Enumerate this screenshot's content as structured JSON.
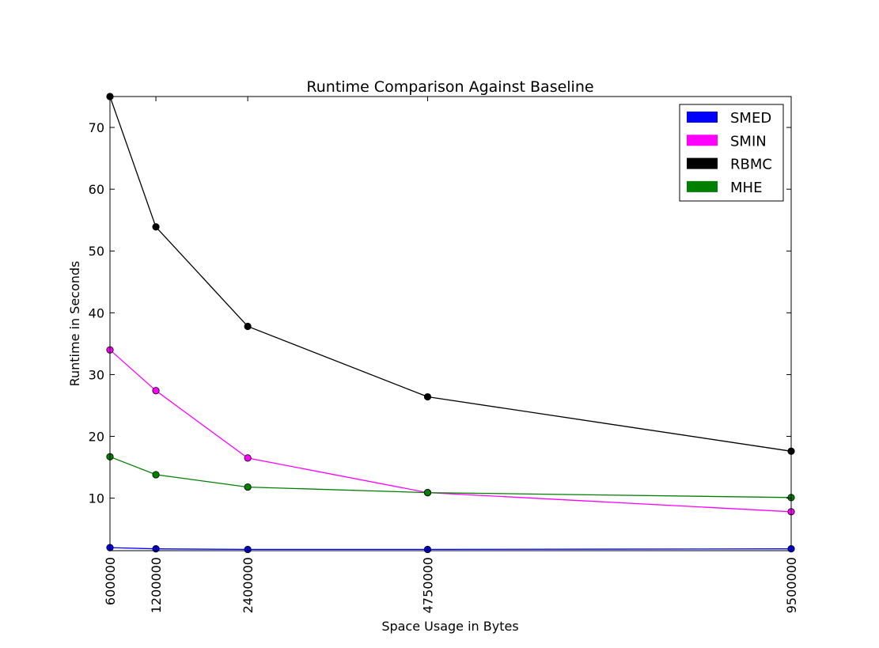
{
  "chart_data": {
    "type": "line",
    "title": "Runtime Comparison Against Baseline",
    "xlabel": "Space Usage in Bytes",
    "ylabel": "Runtime in Seconds",
    "x": [
      600000,
      1200000,
      2400000,
      4750000,
      9500000
    ],
    "x_tick_labels": [
      "600000",
      "1200000",
      "2400000",
      "4750000",
      "9500000"
    ],
    "xlim": [
      600000,
      9500000
    ],
    "ylim": [
      1.5,
      75
    ],
    "y_ticks": [
      10,
      20,
      30,
      40,
      50,
      60,
      70
    ],
    "y_tick_labels": [
      "10",
      "20",
      "30",
      "40",
      "50",
      "60",
      "70"
    ],
    "grid": false,
    "legend_position": "top-right",
    "series": [
      {
        "name": "SMED",
        "color": "#0000ff",
        "values": [
          2.0,
          1.8,
          1.7,
          1.7,
          1.8
        ]
      },
      {
        "name": "SMIN",
        "color": "#ff00ff",
        "values": [
          34.0,
          27.4,
          16.5,
          10.9,
          7.8
        ]
      },
      {
        "name": "RBMC",
        "color": "#000000",
        "values": [
          75.0,
          53.9,
          37.8,
          26.4,
          17.6
        ]
      },
      {
        "name": "MHE",
        "color": "#008000",
        "values": [
          16.7,
          13.8,
          11.8,
          10.9,
          10.1
        ]
      }
    ]
  }
}
